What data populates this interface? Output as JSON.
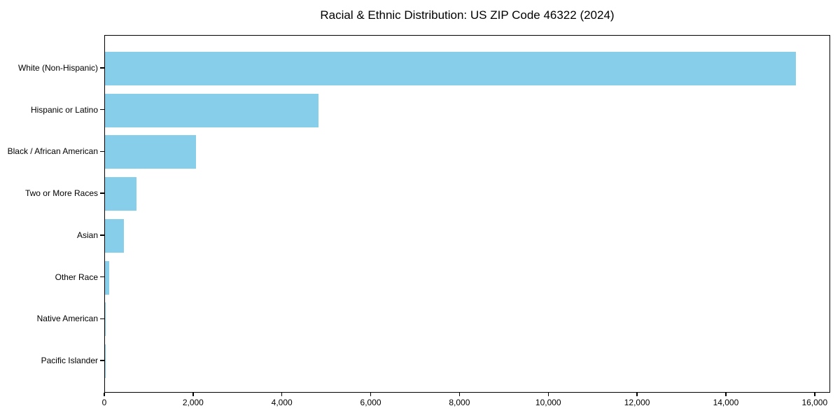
{
  "title": "Racial & Ethnic Distribution: US ZIP Code 46322 (2024)",
  "colors": {
    "bar": "#87CEEB",
    "text": "#000000",
    "spine": "#000000",
    "background": "#ffffff"
  },
  "chart_data": {
    "type": "bar",
    "orientation": "horizontal",
    "title": "Racial & Ethnic Distribution: US ZIP Code 46322 (2024)",
    "xlabel": "",
    "ylabel": "",
    "categories": [
      "White (Non-Hispanic)",
      "Hispanic or Latino",
      "Black / African American",
      "Two or More Races",
      "Asian",
      "Other Race",
      "Native American",
      "Pacific Islander"
    ],
    "values": [
      15560,
      4810,
      2050,
      715,
      425,
      100,
      15,
      5
    ],
    "bar_color": "#87CEEB",
    "xlim": [
      0,
      16350
    ],
    "x_ticks": [
      0,
      2000,
      4000,
      6000,
      8000,
      10000,
      12000,
      14000,
      16000
    ],
    "x_tick_labels": [
      "0",
      "2,000",
      "4,000",
      "6,000",
      "8,000",
      "10,000",
      "12,000",
      "14,000",
      "16,000"
    ],
    "grid": false,
    "legend": null
  }
}
